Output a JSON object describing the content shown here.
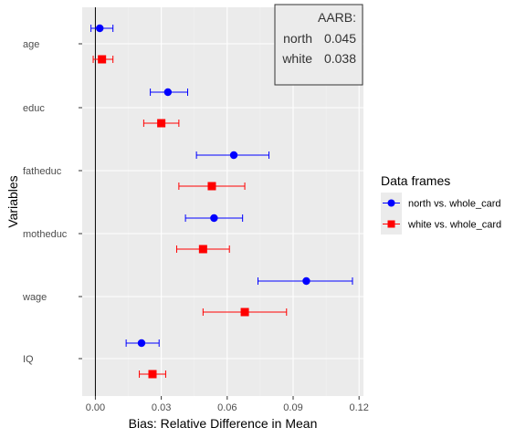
{
  "chart_data": {
    "type": "scatter",
    "xlabel": "Bias: Relative Difference in Mean",
    "ylabel": "Variables",
    "xlim": [
      -0.006,
      0.122
    ],
    "xticks": [
      0.0,
      0.03,
      0.06,
      0.09,
      0.12
    ],
    "xtick_labels": [
      "0.00",
      "0.03",
      "0.06",
      "0.09",
      "0.12"
    ],
    "categories": [
      "age",
      "educ",
      "fatheduc",
      "motheduc",
      "wage",
      "IQ"
    ],
    "grid": true,
    "legend_title": "Data frames",
    "legend_position": "right",
    "series": [
      {
        "name": "north vs. whole_card",
        "color": "#0000FF",
        "marker": "circle",
        "points": [
          {
            "category": "age",
            "value": 0.002,
            "lo": -0.002,
            "hi": 0.008
          },
          {
            "category": "educ",
            "value": 0.033,
            "lo": 0.025,
            "hi": 0.042
          },
          {
            "category": "fatheduc",
            "value": 0.063,
            "lo": 0.046,
            "hi": 0.079
          },
          {
            "category": "motheduc",
            "value": 0.054,
            "lo": 0.041,
            "hi": 0.067
          },
          {
            "category": "wage",
            "value": 0.096,
            "lo": 0.074,
            "hi": 0.117
          },
          {
            "category": "IQ",
            "value": 0.021,
            "lo": 0.014,
            "hi": 0.029
          }
        ]
      },
      {
        "name": "white vs. whole_card",
        "color": "#FF0000",
        "marker": "square",
        "points": [
          {
            "category": "age",
            "value": 0.003,
            "lo": -0.001,
            "hi": 0.008
          },
          {
            "category": "educ",
            "value": 0.03,
            "lo": 0.022,
            "hi": 0.038
          },
          {
            "category": "fatheduc",
            "value": 0.053,
            "lo": 0.038,
            "hi": 0.068
          },
          {
            "category": "motheduc",
            "value": 0.049,
            "lo": 0.037,
            "hi": 0.061
          },
          {
            "category": "wage",
            "value": 0.068,
            "lo": 0.049,
            "hi": 0.087
          },
          {
            "category": "IQ",
            "value": 0.026,
            "lo": 0.02,
            "hi": 0.032
          }
        ]
      }
    ],
    "vline_x": 0,
    "annotation": {
      "title": "AARB:",
      "rows": [
        {
          "label": "north",
          "value": "0.045"
        },
        {
          "label": "white",
          "value": "0.038"
        }
      ]
    }
  },
  "colors": {
    "panel_bg": "#EBEBEB",
    "grid_major": "#FFFFFF",
    "grid_minor": "#F2F2F2",
    "legend_key_bg": "#EBEBEB"
  }
}
